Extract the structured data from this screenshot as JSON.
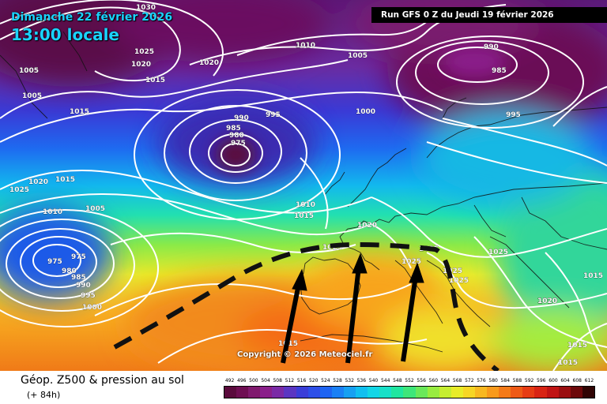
{
  "header": {
    "date": "Dimanche 22 février 2026",
    "time": "13:00 locale",
    "run": "Run GFS 0 Z du Jeudi 19 février 2026"
  },
  "copyright": "Copyright © 2026 Meteociel.fr",
  "footer": {
    "title": "Géop. Z500 & pression au sol",
    "subtitle": "(+ 84h)"
  },
  "scale": {
    "labels": [
      "492",
      "496",
      "500",
      "504",
      "508",
      "512",
      "516",
      "520",
      "524",
      "528",
      "532",
      "536",
      "540",
      "544",
      "548",
      "552",
      "556",
      "560",
      "564",
      "568",
      "572",
      "576",
      "580",
      "584",
      "588",
      "592",
      "596",
      "600",
      "604",
      "608",
      "612"
    ],
    "colors": [
      "#5a0a3c",
      "#6e0e52",
      "#801a6e",
      "#8a1f8a",
      "#7a2aa6",
      "#5a36c2",
      "#3a3ed8",
      "#2d4fe8",
      "#1e64f2",
      "#1a80f5",
      "#16a0f2",
      "#10bff0",
      "#12d6e6",
      "#18e0c8",
      "#20e6a0",
      "#3ee67a",
      "#6ae85a",
      "#98ec40",
      "#c6ee30",
      "#e8ec28",
      "#f6d624",
      "#f8b820",
      "#f89a1c",
      "#f47a18",
      "#ee5a16",
      "#e63c14",
      "#d82414",
      "#c01414",
      "#9a0e10",
      "#6c080a",
      "#300404"
    ]
  },
  "isobar_labels": [
    "1030",
    "1025",
    "1020",
    "1020",
    "1015",
    "1005",
    "1010",
    "1005",
    "1005",
    "1015",
    "1025",
    "1020",
    "1015",
    "1010",
    "1005",
    "990",
    "985",
    "980",
    "975",
    "995",
    "1000",
    "1010",
    "1005",
    "1010",
    "1015",
    "1020",
    "990",
    "985",
    "995",
    "975",
    "975",
    "980",
    "985",
    "990",
    "995",
    "1000",
    "1020",
    "1025",
    "1025",
    "1025",
    "1025",
    "1025",
    "1025",
    "1015",
    "1020",
    "1015",
    "1015",
    "1015"
  ],
  "legend_features": {
    "arrows": "northward warm air advection arrows",
    "ridge_axis": "dashed black ridge line"
  }
}
